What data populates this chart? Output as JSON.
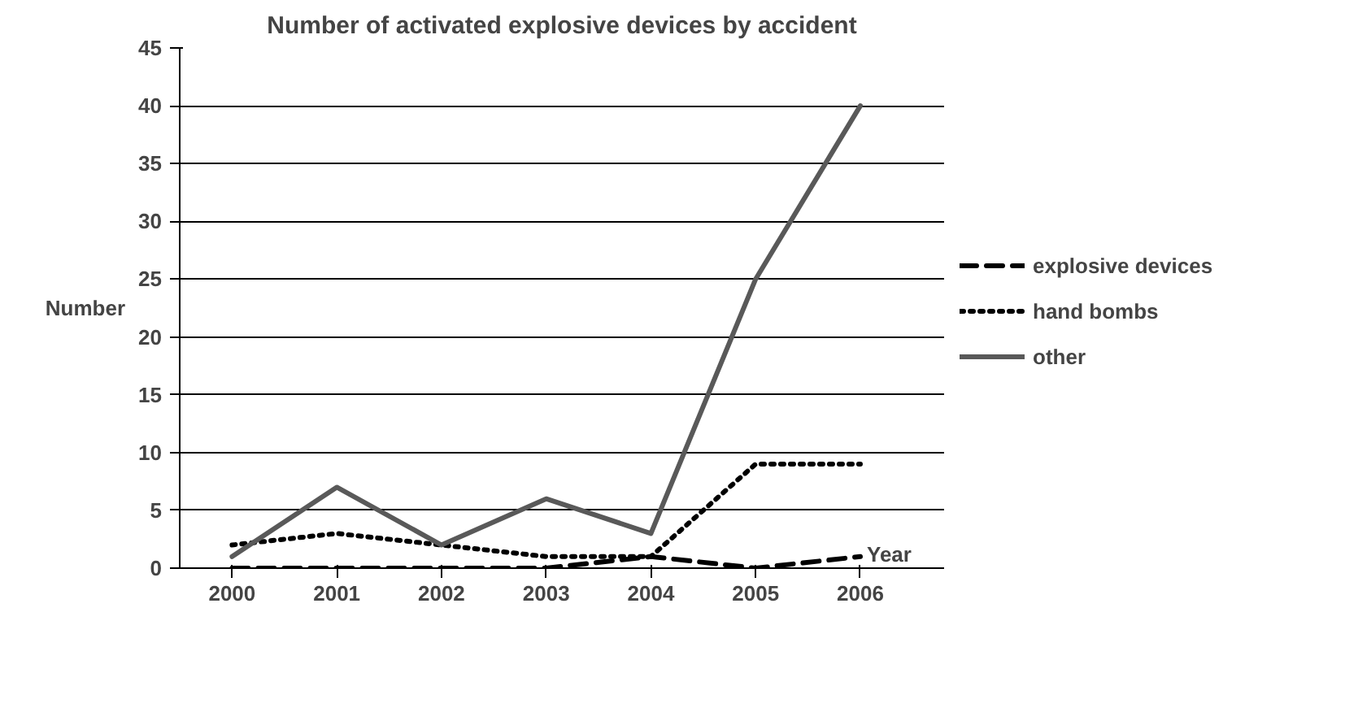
{
  "chart_data": {
    "type": "line",
    "title": "Number of activated explosive devices by accident",
    "xlabel": "Year",
    "ylabel": "Number",
    "categories": [
      "2000",
      "2001",
      "2002",
      "2003",
      "2004",
      "2005",
      "2006"
    ],
    "ylim": [
      0,
      45
    ],
    "yticks": [
      0,
      5,
      10,
      15,
      20,
      25,
      30,
      35,
      40,
      45
    ],
    "grid": "y",
    "legend": "right",
    "series": [
      {
        "name": "explosive devices",
        "color": "#000000",
        "line_style": "dashed",
        "values": [
          0,
          0,
          0,
          0,
          1,
          0,
          1
        ]
      },
      {
        "name": "hand bombs",
        "color": "#000000",
        "line_style": "dotted",
        "values": [
          2,
          3,
          2,
          1,
          1,
          9,
          9
        ]
      },
      {
        "name": "other",
        "color": "#595959",
        "line_style": "solid",
        "values": [
          1,
          7,
          2,
          6,
          3,
          25,
          40
        ]
      }
    ]
  }
}
